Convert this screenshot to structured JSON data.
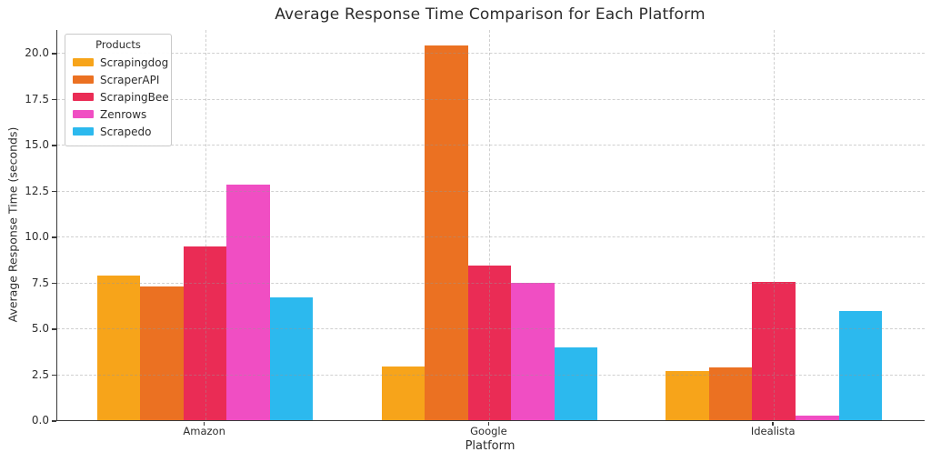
{
  "chart_data": {
    "type": "bar",
    "title": "Average Response Time Comparison for Each Platform",
    "xlabel": "Platform",
    "ylabel": "Average Response Time (seconds)",
    "legend_title": "Products",
    "legend_position": "upper left",
    "grid": "dashed",
    "categories": [
      "Amazon",
      "Google",
      "Idealista"
    ],
    "series": [
      {
        "name": "Scrapingdog",
        "color": "#F7A41A",
        "values": [
          7.9,
          2.9,
          2.7
        ]
      },
      {
        "name": "ScraperAPI",
        "color": "#EB7122",
        "values": [
          7.3,
          20.4,
          2.85
        ]
      },
      {
        "name": "ScrapingBee",
        "color": "#EA2C55",
        "values": [
          9.45,
          8.4,
          7.55
        ]
      },
      {
        "name": "Zenrows",
        "color": "#F04EC3",
        "values": [
          12.85,
          7.5,
          0.25
        ]
      },
      {
        "name": "Scrapedo",
        "color": "#2CB9EE",
        "values": [
          6.7,
          3.95,
          5.95
        ]
      }
    ],
    "yticks": [
      0.0,
      2.5,
      5.0,
      7.5,
      10.0,
      12.5,
      15.0,
      17.5,
      20.0
    ],
    "ylim": [
      0,
      21.25
    ],
    "colors": {
      "spine": "#3a3a3a",
      "text": "#2d2d2d",
      "gridline": "rgba(150,150,150,0.45)",
      "background": "#ffffff"
    }
  }
}
